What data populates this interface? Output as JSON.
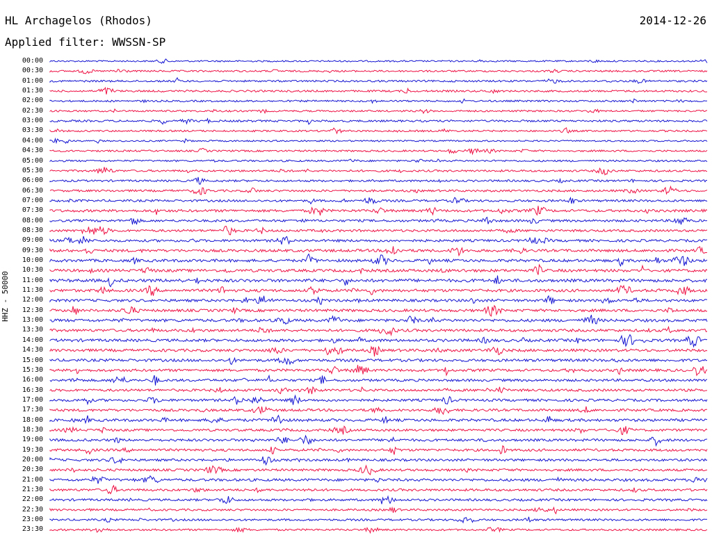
{
  "header": {
    "station": "HL Archagelos (Rhodos)",
    "filter_label": "Applied filter:",
    "filter_value": "WWSSN-SP",
    "date": "2014-12-26"
  },
  "axis": {
    "vertical_label": "HHZ - 50000"
  },
  "colors": {
    "trace_a": "#1414d2",
    "trace_b": "#ee1144",
    "text": "#000000",
    "background": "#ffffff"
  },
  "rows": [
    {
      "time": "00:00",
      "activity": 0.2
    },
    {
      "time": "00:30",
      "activity": 0.3
    },
    {
      "time": "01:00",
      "activity": 0.35
    },
    {
      "time": "01:30",
      "activity": 0.35
    },
    {
      "time": "02:00",
      "activity": 0.3
    },
    {
      "time": "02:30",
      "activity": 0.3
    },
    {
      "time": "03:00",
      "activity": 0.4
    },
    {
      "time": "03:30",
      "activity": 0.3
    },
    {
      "time": "04:00",
      "activity": 0.2
    },
    {
      "time": "04:30",
      "activity": 0.3
    },
    {
      "time": "05:00",
      "activity": 0.3
    },
    {
      "time": "05:30",
      "activity": 0.4
    },
    {
      "time": "06:00",
      "activity": 0.4
    },
    {
      "time": "06:30",
      "activity": 0.45
    },
    {
      "time": "07:00",
      "activity": 0.5
    },
    {
      "time": "07:30",
      "activity": 0.65
    },
    {
      "time": "08:00",
      "activity": 0.55
    },
    {
      "time": "08:30",
      "activity": 0.55
    },
    {
      "time": "09:00",
      "activity": 0.6
    },
    {
      "time": "09:30",
      "activity": 0.7
    },
    {
      "time": "10:00",
      "activity": 0.75
    },
    {
      "time": "10:30",
      "activity": 0.75
    },
    {
      "time": "11:00",
      "activity": 0.85
    },
    {
      "time": "11:30",
      "activity": 0.75
    },
    {
      "time": "12:00",
      "activity": 0.65
    },
    {
      "time": "12:30",
      "activity": 0.7
    },
    {
      "time": "13:00",
      "activity": 0.75
    },
    {
      "time": "13:30",
      "activity": 0.7
    },
    {
      "time": "14:00",
      "activity": 0.75
    },
    {
      "time": "14:30",
      "activity": 0.7
    },
    {
      "time": "15:00",
      "activity": 0.7
    },
    {
      "time": "15:30",
      "activity": 0.65
    },
    {
      "time": "16:00",
      "activity": 0.6
    },
    {
      "time": "16:30",
      "activity": 0.6
    },
    {
      "time": "17:00",
      "activity": 0.6
    },
    {
      "time": "17:30",
      "activity": 0.6
    },
    {
      "time": "18:00",
      "activity": 0.7
    },
    {
      "time": "18:30",
      "activity": 0.55
    },
    {
      "time": "19:00",
      "activity": 0.6
    },
    {
      "time": "19:30",
      "activity": 0.6
    },
    {
      "time": "20:00",
      "activity": 0.55
    },
    {
      "time": "20:30",
      "activity": 0.55
    },
    {
      "time": "21:00",
      "activity": 0.65
    },
    {
      "time": "21:30",
      "activity": 0.55
    },
    {
      "time": "22:00",
      "activity": 0.5
    },
    {
      "time": "22:30",
      "activity": 0.4
    },
    {
      "time": "23:00",
      "activity": 0.4
    },
    {
      "time": "23:30",
      "activity": 0.35
    }
  ]
}
